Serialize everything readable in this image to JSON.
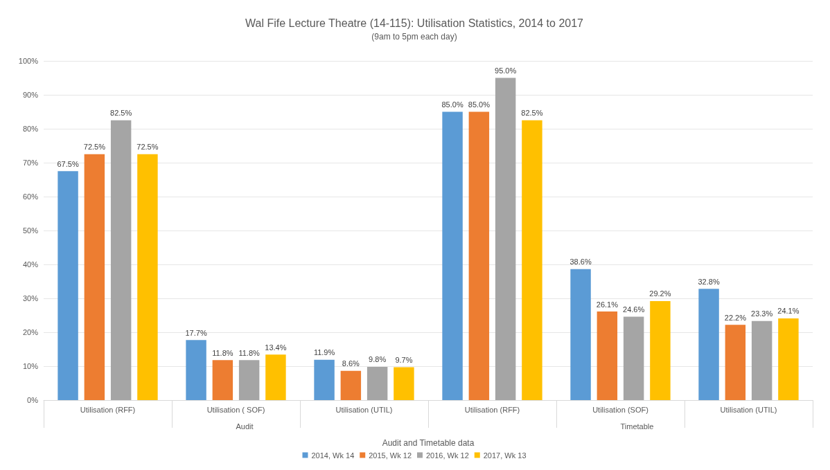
{
  "chart_data": {
    "type": "bar",
    "title": "Wal Fife Lecture Theatre (14-115): Utilisation Statistics, 2014 to 2017",
    "subtitle": "(9am to 5pm each day)",
    "xlabel": "Audit and Timetable data",
    "categories": [
      "Utilisation (RFF)",
      "Utilisation ( SOF)",
      "Utilisation (UTIL)",
      "Utilisation (RFF)",
      "Utilisation (SOF)",
      "Utilisation (UTIL)"
    ],
    "annotations": [
      "Audit",
      "Timetable"
    ],
    "series": [
      {
        "name": "2014, Wk 14",
        "color": "#5b9bd5",
        "values": [
          67.5,
          17.7,
          11.9,
          85.0,
          38.6,
          32.8
        ],
        "value_labels": [
          "67.5%",
          "17.7%",
          "11.9%",
          "85.0%",
          "38.6%",
          "32.8%"
        ]
      },
      {
        "name": "2015, Wk 12",
        "color": "#ed7d31",
        "values": [
          72.5,
          11.8,
          8.6,
          85.0,
          26.1,
          22.2
        ],
        "value_labels": [
          "72.5%",
          "11.8%",
          "8.6%",
          "85.0%",
          "26.1%",
          "22.2%"
        ]
      },
      {
        "name": "2016, Wk 12",
        "color": "#a5a5a5",
        "values": [
          82.5,
          11.8,
          9.8,
          95.0,
          24.6,
          23.3
        ],
        "value_labels": [
          "82.5%",
          "11.8%",
          "9.8%",
          "95.0%",
          "24.6%",
          "23.3%"
        ]
      },
      {
        "name": "2017, Wk 13",
        "color": "#ffc000",
        "values": [
          72.5,
          13.4,
          9.7,
          82.5,
          29.2,
          24.1
        ],
        "value_labels": [
          "72.5%",
          "13.4%",
          "9.7%",
          "82.5%",
          "29.2%",
          "24.1%"
        ]
      }
    ],
    "ylim": [
      0,
      100
    ],
    "yticks": [
      {
        "value": 0,
        "label": "0%"
      },
      {
        "value": 10,
        "label": "10%"
      },
      {
        "value": 20,
        "label": "20%"
      },
      {
        "value": 30,
        "label": "30%"
      },
      {
        "value": 40,
        "label": "40%"
      },
      {
        "value": 50,
        "label": "50%"
      },
      {
        "value": 60,
        "label": "60%"
      },
      {
        "value": 70,
        "label": "70%"
      },
      {
        "value": 80,
        "label": "80%"
      },
      {
        "value": 90,
        "label": "90%"
      },
      {
        "value": 100,
        "label": "100%"
      }
    ],
    "grid": "y",
    "legend": "bottom"
  }
}
